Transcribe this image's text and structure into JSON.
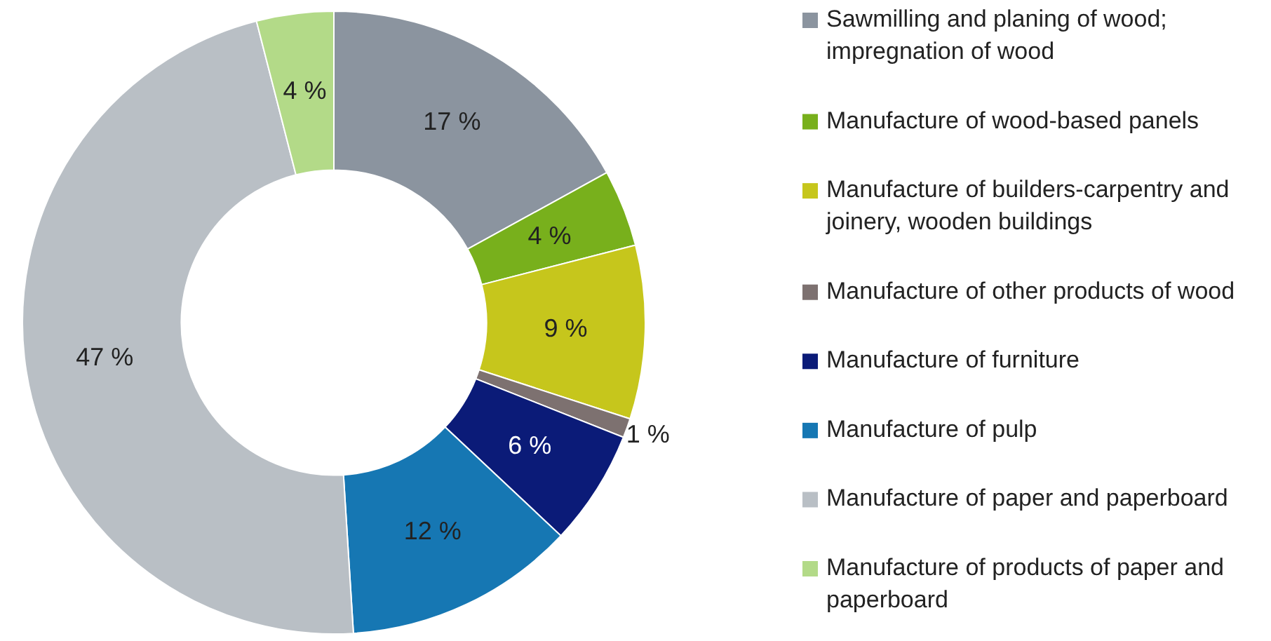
{
  "chart_data": {
    "type": "donut",
    "categories": [
      "Sawmilling and planing of wood; impregnation of wood",
      "Manufacture of wood-based panels",
      "Manufacture of builders-carpentry and joinery, wooden buildings",
      "Manufacture of other products of wood",
      "Manufacture of furniture",
      "Manufacture of pulp",
      "Manufacture of paper and paperboard",
      "Manufacture of products of paper and paperboard"
    ],
    "values": [
      17,
      4,
      9,
      1,
      6,
      12,
      47,
      4
    ],
    "colors": [
      "#8b949f",
      "#78b01c",
      "#c6c61c",
      "#7d7170",
      "#0b1b78",
      "#1677b3",
      "#b9bfc5",
      "#b3da88"
    ],
    "value_labels": [
      "17 %",
      "4 %",
      "9 %",
      "1 %",
      "6 %",
      "12 %",
      "47 %",
      "4 %"
    ],
    "legend": "right"
  }
}
